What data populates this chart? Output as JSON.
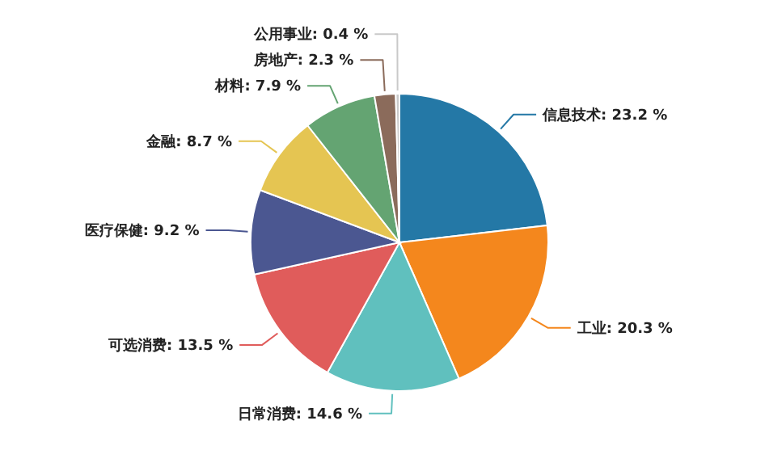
{
  "chart_data": {
    "type": "pie",
    "categories": [
      "信息技术",
      "工业",
      "日常消费",
      "可选消费",
      "医疗保健",
      "金融",
      "材料",
      "房地产",
      "公用事业"
    ],
    "values": [
      23.2,
      20.3,
      14.6,
      13.5,
      9.2,
      8.7,
      7.9,
      2.3,
      0.4
    ],
    "value_labels": [
      "23.2 %",
      "20.3 %",
      "14.6 %",
      "13.5 %",
      "9.2 %",
      "8.7 %",
      "7.9 %",
      "2.3 %",
      "0.4 %"
    ],
    "colors": [
      "#2478a6",
      "#f4871d",
      "#60c0be",
      "#e05c5b",
      "#4b5791",
      "#e5c552",
      "#64a472",
      "#8b6b5b",
      "#c9c9c9"
    ]
  }
}
